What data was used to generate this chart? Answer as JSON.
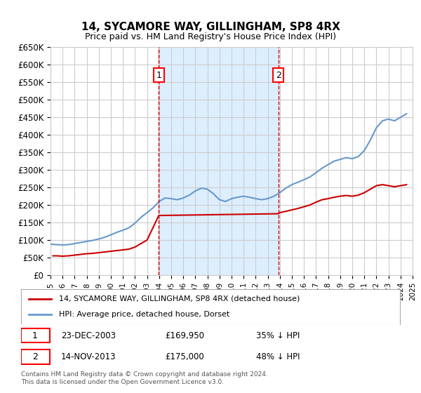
{
  "title": "14, SYCAMORE WAY, GILLINGHAM, SP8 4RX",
  "subtitle": "Price paid vs. HM Land Registry's House Price Index (HPI)",
  "ylabel_ticks": [
    "£0",
    "£50K",
    "£100K",
    "£150K",
    "£200K",
    "£250K",
    "£300K",
    "£350K",
    "£400K",
    "£450K",
    "£500K",
    "£550K",
    "£600K",
    "£650K"
  ],
  "ylim": [
    0,
    650000
  ],
  "yticks": [
    0,
    50000,
    100000,
    150000,
    200000,
    250000,
    300000,
    350000,
    400000,
    450000,
    500000,
    550000,
    600000,
    650000
  ],
  "sale1_date": "23-DEC-2003",
  "sale1_price": 169950,
  "sale1_label": "1",
  "sale1_year": 2003.97,
  "sale2_date": "14-NOV-2013",
  "sale2_price": 175000,
  "sale2_label": "2",
  "sale2_year": 2013.87,
  "legend1": "14, SYCAMORE WAY, GILLINGHAM, SP8 4RX (detached house)",
  "legend2": "HPI: Average price, detached house, Dorset",
  "footnote": "Contains HM Land Registry data © Crown copyright and database right 2024.\nThis data is licensed under the Open Government Licence v3.0.",
  "property_color": "#cc0000",
  "hpi_color": "#6699cc",
  "shade_color": "#ddeeff",
  "background_color": "#ffffff",
  "grid_color": "#cccccc",
  "hpi_data_years": [
    1995,
    1995.5,
    1996,
    1996.5,
    1997,
    1997.5,
    1998,
    1998.5,
    1999,
    1999.5,
    2000,
    2000.5,
    2001,
    2001.5,
    2002,
    2002.5,
    2003,
    2003.5,
    2004,
    2004.5,
    2005,
    2005.5,
    2006,
    2006.5,
    2007,
    2007.5,
    2008,
    2008.5,
    2009,
    2009.5,
    2010,
    2010.5,
    2011,
    2011.5,
    2012,
    2012.5,
    2013,
    2013.5,
    2014,
    2014.5,
    2015,
    2015.5,
    2016,
    2016.5,
    2017,
    2017.5,
    2018,
    2018.5,
    2019,
    2019.5,
    2020,
    2020.5,
    2021,
    2021.5,
    2022,
    2022.5,
    2023,
    2023.5,
    2024,
    2024.5
  ],
  "hpi_data_values": [
    88000,
    87000,
    86000,
    87000,
    90000,
    93000,
    96000,
    99000,
    103000,
    108000,
    115000,
    122000,
    128000,
    135000,
    148000,
    165000,
    178000,
    192000,
    210000,
    220000,
    218000,
    215000,
    220000,
    228000,
    240000,
    248000,
    245000,
    232000,
    215000,
    210000,
    218000,
    222000,
    225000,
    222000,
    218000,
    215000,
    218000,
    225000,
    235000,
    248000,
    258000,
    265000,
    272000,
    280000,
    292000,
    305000,
    315000,
    325000,
    330000,
    335000,
    332000,
    338000,
    355000,
    385000,
    420000,
    440000,
    445000,
    440000,
    450000,
    460000
  ],
  "property_data_years": [
    1995.2,
    1995.5,
    1996,
    1996.5,
    1997,
    1997.5,
    1998,
    1998.5,
    1999,
    1999.5,
    2000,
    2000.5,
    2001,
    2001.5,
    2002,
    2002.5,
    2003,
    2003.97,
    2013.87,
    2014,
    2014.5,
    2015,
    2015.5,
    2016,
    2016.5,
    2017,
    2017.5,
    2018,
    2018.5,
    2019,
    2019.5,
    2020,
    2020.5,
    2021,
    2021.5,
    2022,
    2022.5,
    2023,
    2023.5,
    2024,
    2024.5
  ],
  "property_data_values": [
    55000,
    55000,
    54000,
    55000,
    57000,
    59000,
    61000,
    62000,
    64000,
    66000,
    68000,
    70000,
    72000,
    74000,
    80000,
    90000,
    100000,
    169950,
    175000,
    178000,
    182000,
    186000,
    190000,
    195000,
    200000,
    208000,
    215000,
    218000,
    222000,
    225000,
    227000,
    225000,
    228000,
    235000,
    245000,
    255000,
    258000,
    255000,
    252000,
    255000,
    258000
  ]
}
